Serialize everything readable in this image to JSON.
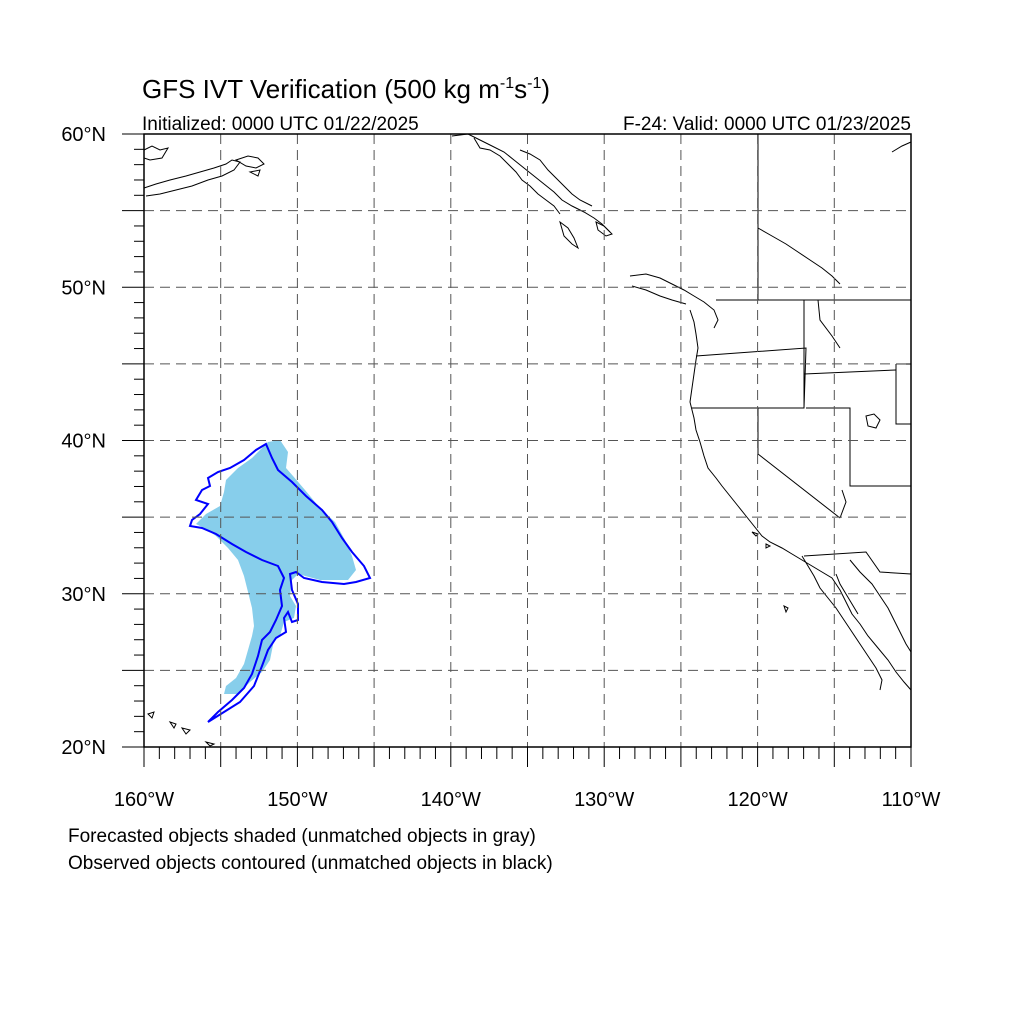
{
  "title": {
    "main": "GFS IVT Verification (500 kg m",
    "sup1": "-1",
    "mid": "s",
    "sup2": "-1",
    "end": ")"
  },
  "initialized": "Initialized: 0000 UTC 01/22/2025",
  "valid": "F-24: Valid: 0000 UTC 01/23/2025",
  "lat_labels": [
    {
      "lat": 60,
      "text": "60°N"
    },
    {
      "lat": 50,
      "text": "50°N"
    },
    {
      "lat": 40,
      "text": "40°N"
    },
    {
      "lat": 30,
      "text": "30°N"
    },
    {
      "lat": 20,
      "text": "20°N"
    }
  ],
  "lon_labels": [
    {
      "lon": -160,
      "text": "160°W"
    },
    {
      "lon": -150,
      "text": "150°W"
    },
    {
      "lon": -140,
      "text": "140°W"
    },
    {
      "lon": -130,
      "text": "130°W"
    },
    {
      "lon": -120,
      "text": "120°W"
    },
    {
      "lon": -110,
      "text": "110°W"
    }
  ],
  "extent": {
    "lon_min": -160,
    "lon_max": -110,
    "lat_min": 20,
    "lat_max": 60
  },
  "grid_spacing_deg": 5,
  "colors": {
    "forecast_fill": "#87CEEB",
    "observed_contour": "#0000FF",
    "coast": "#000000",
    "grid": "#555555"
  },
  "legend": {
    "line1": "Forecasted objects shaded (unmatched objects in gray)",
    "line2": "Observed objects contoured (unmatched objects in black)"
  }
}
